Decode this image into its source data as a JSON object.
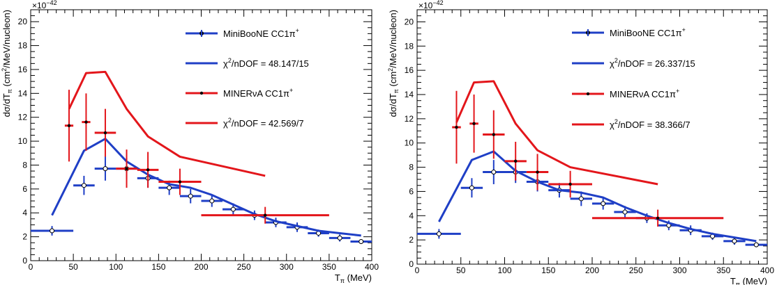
{
  "chart_data": [
    {
      "type": "scatter",
      "xlabel": "T",
      "xlabel_sub": "π",
      "xlabel_unit": " (MeV)",
      "ylabel": "dσ/dT",
      "ylabel_sub": "π",
      "ylabel_unit_pre": " (cm",
      "ylabel_unit_sup": "2",
      "ylabel_unit_post": "/MeV/nucleon)",
      "exponent_label": "×10",
      "exponent_power": "−42",
      "xlim": [
        0,
        400
      ],
      "ylim": [
        0,
        21
      ],
      "x_ticks": [
        0,
        50,
        100,
        150,
        200,
        250,
        300,
        350,
        400
      ],
      "y_ticks": [
        0,
        2,
        4,
        6,
        8,
        10,
        12,
        14,
        16,
        18,
        20
      ],
      "grid": false,
      "legend_position": "top-right",
      "legend": [
        {
          "label": "MiniBooNE CC1π",
          "sup": "+"
        },
        {
          "label": "χ",
          "sup": "2",
          "rest": "/nDOF = 48.147/15"
        },
        {
          "label": "MINERνA CC1π",
          "sup": "+"
        },
        {
          "label": "χ",
          "sup": "2",
          "rest": "/nDOF = 42.569/7"
        }
      ],
      "series": [
        {
          "name": "MiniBooNE CC1π+",
          "kind": "data",
          "color": "#1f3fc6",
          "x": [
            25,
            62.5,
            87.5,
            112.5,
            137.5,
            162.5,
            187.5,
            212.5,
            237.5,
            262.5,
            287.5,
            312.5,
            337.5,
            362.5,
            387.5
          ],
          "xerr": [
            25,
            12.5,
            12.5,
            12.5,
            12.5,
            12.5,
            12.5,
            12.5,
            12.5,
            12.5,
            12.5,
            12.5,
            12.5,
            12.5,
            12.5
          ],
          "y": [
            2.5,
            6.3,
            7.7,
            7.7,
            6.9,
            6.1,
            5.4,
            5.0,
            4.3,
            3.8,
            3.2,
            2.8,
            2.3,
            1.9,
            1.6
          ],
          "yerr": [
            0.4,
            0.8,
            1.0,
            0.9,
            0.8,
            0.6,
            0.6,
            0.5,
            0.5,
            0.4,
            0.4,
            0.4,
            0.3,
            0.3,
            0.2
          ]
        },
        {
          "name": "MiniBooNE model",
          "kind": "model",
          "color": "#1f3fc6",
          "x": [
            25,
            62.5,
            87.5,
            112.5,
            137.5,
            162.5,
            187.5,
            212.5,
            237.5,
            262.5,
            287.5,
            312.5,
            337.5,
            362.5,
            387.5
          ],
          "y": [
            3.8,
            9.2,
            10.2,
            8.3,
            7.2,
            6.4,
            6.1,
            5.5,
            4.7,
            3.9,
            3.3,
            2.9,
            2.5,
            2.3,
            2.1
          ]
        },
        {
          "name": "MINERνA CC1π+",
          "kind": "data",
          "color": "#e3161b",
          "x": [
            45,
            65,
            87.5,
            112.5,
            137.5,
            175,
            275
          ],
          "xerr": [
            5,
            5,
            12.5,
            12.5,
            12.5,
            25,
            75
          ],
          "y": [
            11.3,
            11.6,
            10.7,
            7.7,
            7.6,
            6.6,
            3.8
          ],
          "yerr": [
            3.0,
            2.4,
            2.0,
            1.6,
            1.5,
            1.1,
            0.7
          ]
        },
        {
          "name": "MINERνA model",
          "kind": "model",
          "color": "#e3161b",
          "x": [
            45,
            65,
            87.5,
            112.5,
            137.5,
            175,
            275
          ],
          "y": [
            12.7,
            15.7,
            15.8,
            12.7,
            10.4,
            8.7,
            7.1
          ]
        }
      ]
    },
    {
      "type": "scatter",
      "xlabel": "T",
      "xlabel_sub": "π",
      "xlabel_unit": " (MeV)",
      "ylabel": "dσ/dT",
      "ylabel_sub": "π",
      "ylabel_unit_pre": " (cm",
      "ylabel_unit_sup": "2",
      "ylabel_unit_post": "/MeV/nucleon)",
      "exponent_label": "×10",
      "exponent_power": "−42",
      "xlim": [
        0,
        400
      ],
      "ylim": [
        0,
        21
      ],
      "x_ticks": [
        0,
        50,
        100,
        150,
        200,
        250,
        300,
        350,
        400
      ],
      "y_ticks": [
        0,
        2,
        4,
        6,
        8,
        10,
        12,
        14,
        16,
        18,
        20
      ],
      "grid": false,
      "legend_position": "top-right",
      "legend": [
        {
          "label": "MiniBooNE CC1π",
          "sup": "+"
        },
        {
          "label": "χ",
          "sup": "2",
          "rest": "/nDOF = 26.337/15"
        },
        {
          "label": "MINERνA CC1π",
          "sup": "+"
        },
        {
          "label": "χ",
          "sup": "2",
          "rest": "/nDOF = 38.366/7"
        }
      ],
      "series": [
        {
          "name": "MiniBooNE CC1π+",
          "kind": "data",
          "color": "#1f3fc6",
          "x": [
            25,
            62.5,
            87.5,
            112.5,
            137.5,
            162.5,
            187.5,
            212.5,
            237.5,
            262.5,
            287.5,
            312.5,
            337.5,
            362.5,
            387.5
          ],
          "xerr": [
            25,
            12.5,
            12.5,
            12.5,
            12.5,
            12.5,
            12.5,
            12.5,
            12.5,
            12.5,
            12.5,
            12.5,
            12.5,
            12.5,
            12.5
          ],
          "y": [
            2.5,
            6.3,
            7.6,
            7.6,
            6.8,
            6.1,
            5.4,
            5.0,
            4.3,
            3.8,
            3.2,
            2.8,
            2.3,
            1.9,
            1.6
          ],
          "yerr": [
            0.4,
            0.8,
            1.0,
            0.9,
            0.8,
            0.6,
            0.6,
            0.5,
            0.5,
            0.4,
            0.4,
            0.4,
            0.3,
            0.3,
            0.2
          ]
        },
        {
          "name": "MiniBooNE model",
          "kind": "model",
          "color": "#1f3fc6",
          "x": [
            25,
            62.5,
            87.5,
            112.5,
            137.5,
            162.5,
            187.5,
            212.5,
            237.5,
            262.5,
            287.5,
            312.5,
            337.5,
            362.5,
            387.5
          ],
          "y": [
            3.5,
            8.6,
            9.3,
            7.7,
            6.8,
            6.1,
            5.9,
            5.5,
            4.7,
            4.0,
            3.4,
            2.9,
            2.5,
            2.2,
            1.9
          ]
        },
        {
          "name": "MINERνA CC1π+",
          "kind": "data",
          "color": "#e3161b",
          "x": [
            45,
            65,
            87.5,
            112.5,
            137.5,
            175,
            275
          ],
          "xerr": [
            5,
            5,
            12.5,
            12.5,
            12.5,
            25,
            75
          ],
          "y": [
            11.3,
            11.6,
            10.7,
            8.5,
            7.6,
            6.6,
            3.8
          ],
          "yerr": [
            3.0,
            2.4,
            2.0,
            1.6,
            1.5,
            1.1,
            0.7
          ]
        },
        {
          "name": "MINERνA model",
          "kind": "model",
          "color": "#e3161b",
          "x": [
            45,
            65,
            87.5,
            112.5,
            137.5,
            175,
            275
          ],
          "y": [
            11.7,
            15.0,
            15.1,
            11.6,
            9.4,
            8.0,
            6.6
          ]
        }
      ]
    }
  ]
}
